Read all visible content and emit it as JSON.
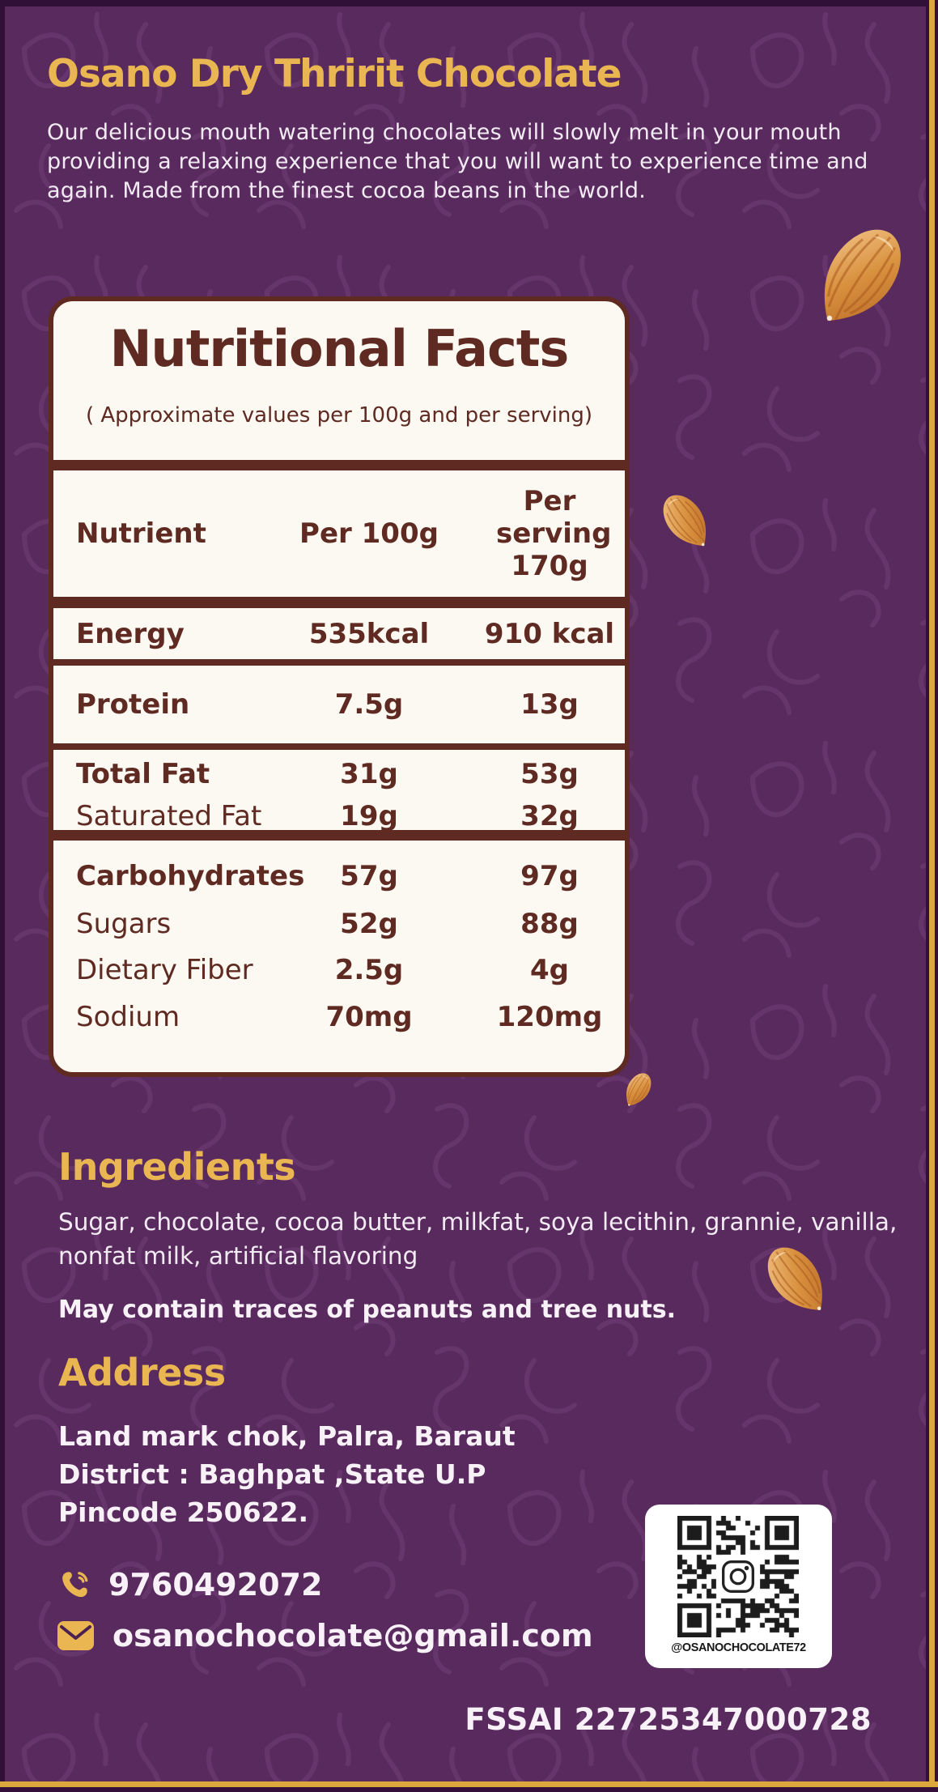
{
  "colors": {
    "background_purple": "#582a5e",
    "accent_gold": "#eab652",
    "gold_line": "#dca73d",
    "card_maroon": "#5e2a21",
    "card_cream": "#fcf8f2",
    "body_text": "#f3ebf3"
  },
  "header": {
    "title": "Osano Dry Thririt Chocolate",
    "description": "Our delicious mouth watering chocolates will slowly melt in your mouth providing a relaxing experience that you will want to experience time and again. Made from the finest cocoa beans in the world."
  },
  "nutrition_card": {
    "title": "Nutritional Facts",
    "subtitle": "( Approximate values per 100g and per serving)",
    "columns": {
      "nutrient": "Nutrient",
      "per100": "Per 100g",
      "serving": "Per serving 170g"
    },
    "rows": [
      {
        "label": "Energy",
        "per100": "535kcal",
        "serving": "910 kcal"
      },
      {
        "label": "Protein",
        "per100": "7.5g",
        "serving": "13g"
      },
      {
        "label": "Total Fat",
        "per100": "31g",
        "serving": "53g"
      },
      {
        "label": "Saturated Fat",
        "per100": "19g",
        "serving": "32g"
      },
      {
        "label": "Carbohydrates",
        "per100": "57g",
        "serving": "97g"
      },
      {
        "label": "Sugars",
        "per100": "52g",
        "serving": "88g"
      },
      {
        "label": "Dietary Fiber",
        "per100": "2.5g",
        "serving": "4g"
      },
      {
        "label": "Sodium",
        "per100": "70mg",
        "serving": "120mg"
      }
    ]
  },
  "ingredients": {
    "heading": "Ingredients",
    "text": "Sugar, chocolate, cocoa butter, milkfat, soya lecithin, grannie, vanilla, nonfat milk, artificial flavoring",
    "allergen": "May contain traces of peanuts and tree nuts."
  },
  "address": {
    "heading": "Address",
    "lines": [
      "Land mark chok, Palra, Baraut",
      "District : Baghpat ,State U.P",
      "Pincode 250622."
    ]
  },
  "contact": {
    "phone": "9760492072",
    "email": "osanochocolate@gmail.com"
  },
  "qr": {
    "caption": "@OSANOCHOCOLATE72"
  },
  "footer": {
    "fssai": "FSSAI 22725347000728"
  }
}
